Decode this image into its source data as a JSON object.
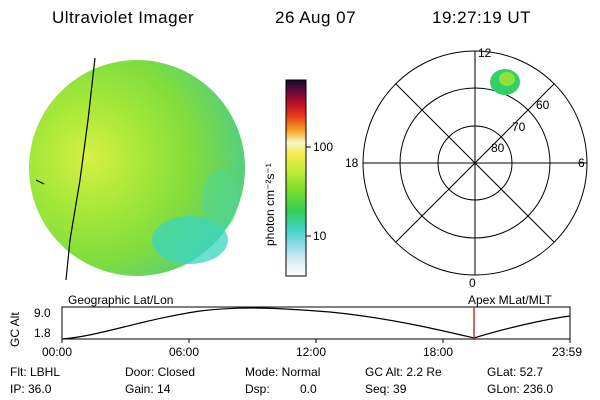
{
  "header": {
    "title": "Ultraviolet Imager",
    "date": "26 Aug 07",
    "time": "19:27:19 UT"
  },
  "colorbar": {
    "label": "photon cm⁻²s⁻¹",
    "ticks": [
      "100",
      "10"
    ]
  },
  "polar_plot": {
    "hour_labels": {
      "top": "12",
      "left": "18",
      "right": "6",
      "bottom": "0"
    },
    "lat_labels": [
      "60",
      "70",
      "80"
    ]
  },
  "captions": {
    "left": "Geographic Lat/Lon",
    "right": "Apex  MLat/MLT"
  },
  "timeline": {
    "y_label": "GC Alt",
    "y_ticks": [
      "9.0",
      "1.8"
    ],
    "x_ticks": [
      "00:00",
      "06:00",
      "12:00",
      "18:00",
      "23:59"
    ],
    "current_time_marker": "19:27:19"
  },
  "info": {
    "filter": "Flt: LBHL",
    "ip": "IP: 36.0",
    "door": "Door: Closed",
    "gain": "Gain: 14",
    "mode": "Mode: Normal",
    "dsp_label": "Dsp:",
    "dsp_value": "0.0",
    "gc_alt": "GC Alt: 2.2 Re",
    "seq": "Seq: 39",
    "glat": "GLat: 52.7",
    "glon": "GLon: 236.0"
  },
  "colors": {
    "aurora_green": "#7edc2a",
    "cyan": "#27d7c8",
    "yellow_green": "#c4ec3c",
    "marker_red": "#c0392b"
  }
}
